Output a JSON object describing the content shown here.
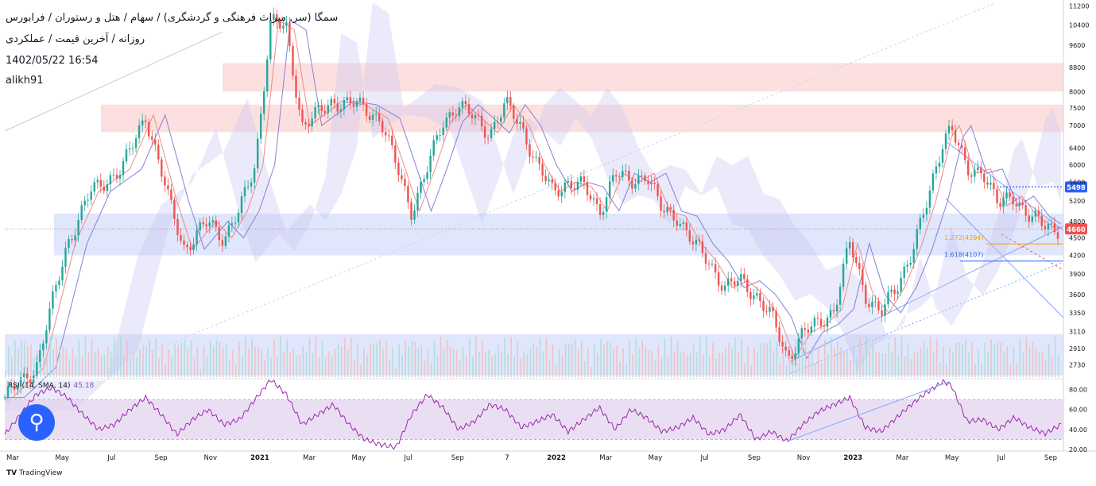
{
  "header": {
    "line1": "سمگا (سر. میراث فرهنگی و گردشگری) / سهام / هتل و رستوران / فرابورس",
    "line2": "روزانه / آخرین قیمت / عملکردی",
    "line3": "1402/05/22 16:54",
    "line4": "alikh91"
  },
  "rsi": {
    "legend": "RSI (14, SMA, 14)",
    "value": "45.18"
  },
  "footer": {
    "brand": "TradingView",
    "logo": "TV"
  },
  "colors": {
    "up": "#26a69a",
    "down": "#ef5350",
    "resistance_zone": "#fbd5d5",
    "support_zone": "#d6defa",
    "rsi_line": "#9c27b0",
    "rsi_band": "#e1d2ec",
    "kijun": "#8a7fd6",
    "tenkan": "#f08080",
    "price_badge": "#ef5350",
    "level_badge": "#2962ff",
    "fib_1272": "#f59f00",
    "fib_1618": "#2962ff"
  },
  "chart_data": {
    "type": "candlestick",
    "scale": "log",
    "x_ticks": [
      "Mar",
      "May",
      "Jul",
      "Sep",
      "Nov",
      "2021",
      "Mar",
      "May",
      "Jul",
      "Sep",
      "7",
      "2022",
      "Mar",
      "May",
      "Jul",
      "Sep",
      "Nov",
      "2023",
      "Mar",
      "May",
      "Jul",
      "Sep"
    ],
    "y_ticks": [
      11200,
      10400,
      9600,
      8800,
      8000,
      7500,
      7000,
      6400,
      6000,
      5600,
      5200,
      4800,
      4500,
      4200,
      3900,
      3600,
      3350,
      3110,
      2910,
      2730
    ],
    "y_tick_labels": [
      "11200",
      "10400",
      "9600",
      "8800",
      "8000",
      "7500",
      "7000",
      "6400",
      "6000",
      "5600",
      "5200",
      "4800",
      "4500",
      "4200",
      "3900",
      "3600",
      "3350",
      "3110",
      "2910",
      "2730"
    ],
    "ylim": [
      2600,
      11400
    ],
    "last_price": 4660,
    "last_price_label": "4660",
    "marked_level": 5498,
    "marked_level_label": "5498",
    "fib_levels": [
      {
        "label": "1.272(4394)",
        "value": 4394
      },
      {
        "label": "1.618(4107)",
        "value": 4107
      }
    ],
    "zones": [
      {
        "type": "resistance",
        "low": 8000,
        "high": 8950
      },
      {
        "type": "resistance",
        "low": 6820,
        "high": 7600
      },
      {
        "type": "support",
        "low": 4200,
        "high": 4950
      },
      {
        "type": "support",
        "low": 2620,
        "high": 3080
      }
    ],
    "price_path": [
      [
        0,
        2400
      ],
      [
        4,
        2700
      ],
      [
        8,
        4400
      ],
      [
        11,
        5400
      ],
      [
        15,
        5900
      ],
      [
        18,
        7300
      ],
      [
        21,
        5200
      ],
      [
        23,
        4300
      ],
      [
        26,
        4800
      ],
      [
        28,
        4500
      ],
      [
        30,
        5000
      ],
      [
        32,
        6000
      ],
      [
        34,
        10600
      ],
      [
        36,
        10200
      ],
      [
        38,
        7000
      ],
      [
        41,
        7500
      ],
      [
        42,
        7700
      ],
      [
        45,
        7600
      ],
      [
        48,
        7200
      ],
      [
        50,
        6000
      ],
      [
        52,
        5000
      ],
      [
        54,
        5900
      ],
      [
        56,
        7100
      ],
      [
        58,
        7600
      ],
      [
        60,
        7200
      ],
      [
        62,
        6800
      ],
      [
        64,
        7600
      ],
      [
        66,
        7000
      ],
      [
        68,
        6000
      ],
      [
        70,
        5400
      ],
      [
        72,
        5600
      ],
      [
        74,
        5500
      ],
      [
        76,
        5000
      ],
      [
        78,
        5800
      ],
      [
        80,
        5600
      ],
      [
        82,
        5800
      ],
      [
        84,
        5000
      ],
      [
        86,
        4900
      ],
      [
        88,
        4400
      ],
      [
        90,
        4100
      ],
      [
        92,
        3700
      ],
      [
        94,
        3800
      ],
      [
        96,
        3600
      ],
      [
        98,
        3300
      ],
      [
        100,
        2800
      ],
      [
        102,
        3100
      ],
      [
        104,
        3200
      ],
      [
        106,
        3400
      ],
      [
        108,
        4400
      ],
      [
        110,
        3600
      ],
      [
        112,
        3350
      ],
      [
        114,
        3700
      ],
      [
        116,
        4300
      ],
      [
        118,
        5200
      ],
      [
        120,
        6700
      ],
      [
        121,
        7000
      ],
      [
        123,
        5800
      ],
      [
        125,
        5900
      ],
      [
        127,
        5100
      ],
      [
        129,
        5300
      ],
      [
        131,
        4900
      ],
      [
        133,
        4700
      ],
      [
        135,
        4660
      ]
    ],
    "rsi_range": [
      20,
      90
    ],
    "rsi_ticks": [
      80,
      60,
      40,
      20
    ],
    "rsi_tick_labels": [
      "80.00",
      "60.00",
      "40.00",
      "20.00"
    ],
    "rsi_bands": [
      70,
      30
    ],
    "rsi_path": [
      [
        0,
        35
      ],
      [
        2,
        55
      ],
      [
        4,
        75
      ],
      [
        6,
        82
      ],
      [
        8,
        72
      ],
      [
        10,
        55
      ],
      [
        12,
        40
      ],
      [
        14,
        45
      ],
      [
        16,
        60
      ],
      [
        18,
        72
      ],
      [
        20,
        55
      ],
      [
        22,
        35
      ],
      [
        24,
        50
      ],
      [
        26,
        60
      ],
      [
        28,
        45
      ],
      [
        30,
        50
      ],
      [
        32,
        70
      ],
      [
        34,
        90
      ],
      [
        36,
        75
      ],
      [
        38,
        45
      ],
      [
        40,
        55
      ],
      [
        42,
        65
      ],
      [
        44,
        45
      ],
      [
        46,
        30
      ],
      [
        48,
        25
      ],
      [
        50,
        22
      ],
      [
        52,
        55
      ],
      [
        54,
        75
      ],
      [
        56,
        62
      ],
      [
        58,
        40
      ],
      [
        60,
        48
      ],
      [
        62,
        65
      ],
      [
        64,
        60
      ],
      [
        66,
        42
      ],
      [
        68,
        48
      ],
      [
        70,
        55
      ],
      [
        72,
        38
      ],
      [
        74,
        50
      ],
      [
        76,
        62
      ],
      [
        78,
        40
      ],
      [
        80,
        60
      ],
      [
        82,
        52
      ],
      [
        84,
        38
      ],
      [
        86,
        42
      ],
      [
        88,
        52
      ],
      [
        90,
        35
      ],
      [
        92,
        40
      ],
      [
        94,
        55
      ],
      [
        96,
        30
      ],
      [
        98,
        38
      ],
      [
        100,
        28
      ],
      [
        102,
        45
      ],
      [
        104,
        58
      ],
      [
        106,
        65
      ],
      [
        108,
        72
      ],
      [
        110,
        42
      ],
      [
        112,
        38
      ],
      [
        114,
        52
      ],
      [
        116,
        66
      ],
      [
        118,
        78
      ],
      [
        120,
        88
      ],
      [
        121,
        84
      ],
      [
        123,
        48
      ],
      [
        125,
        50
      ],
      [
        127,
        40
      ],
      [
        129,
        52
      ],
      [
        131,
        42
      ],
      [
        133,
        36
      ],
      [
        135,
        45
      ]
    ]
  }
}
